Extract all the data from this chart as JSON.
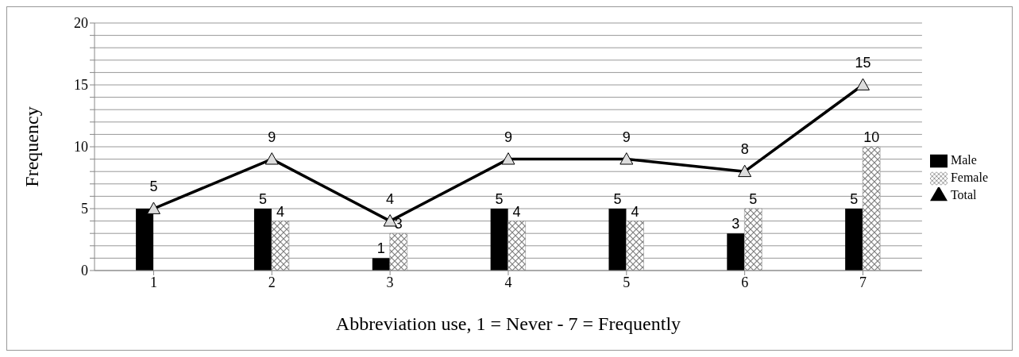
{
  "chart_data": {
    "type": "bar",
    "xlabel": "Abbreviation use, 1 = Never - 7 = Frequently",
    "ylabel": "Frequency",
    "categories": [
      "1",
      "2",
      "3",
      "4",
      "5",
      "6",
      "7"
    ],
    "series": [
      {
        "name": "Male",
        "color": "#000000",
        "values": [
          5,
          5,
          1,
          5,
          5,
          3,
          5
        ],
        "value_labels": [
          null,
          "5",
          "1",
          "5",
          "5",
          "3",
          "5"
        ]
      },
      {
        "name": "Female",
        "color": "#808080",
        "values": [
          null,
          4,
          3,
          4,
          4,
          5,
          10
        ],
        "value_labels": [
          null,
          "4",
          "3",
          "4",
          "4",
          "5",
          "10"
        ]
      },
      {
        "name": "Total",
        "type": "line",
        "color": "#000000",
        "marker": "triangle",
        "values": [
          5,
          9,
          4,
          9,
          9,
          8,
          15
        ],
        "value_labels": [
          "5",
          "9",
          "4",
          "9",
          "9",
          "8",
          "15"
        ]
      }
    ],
    "ylim": [
      0,
      20
    ],
    "yticks": [
      0,
      {
        "value": 1,
        "label": null
      },
      {
        "value": 2,
        "label": null
      },
      {
        "value": 3,
        "label": null
      },
      {
        "value": 4,
        "label": null
      },
      5,
      {
        "value": 6,
        "label": null
      },
      {
        "value": 7,
        "label": null
      },
      {
        "value": 8,
        "label": null
      },
      {
        "value": 9,
        "label": null
      },
      10,
      {
        "value": 11,
        "label": null
      },
      {
        "value": 12,
        "label": null
      },
      {
        "value": 13,
        "label": null
      },
      {
        "value": 14,
        "label": null
      },
      15,
      {
        "value": 16,
        "label": null
      },
      {
        "value": 17,
        "label": null
      },
      {
        "value": 18,
        "label": null
      },
      {
        "value": 19,
        "label": null
      },
      20
    ],
    "grid": "y",
    "legend": "right"
  }
}
